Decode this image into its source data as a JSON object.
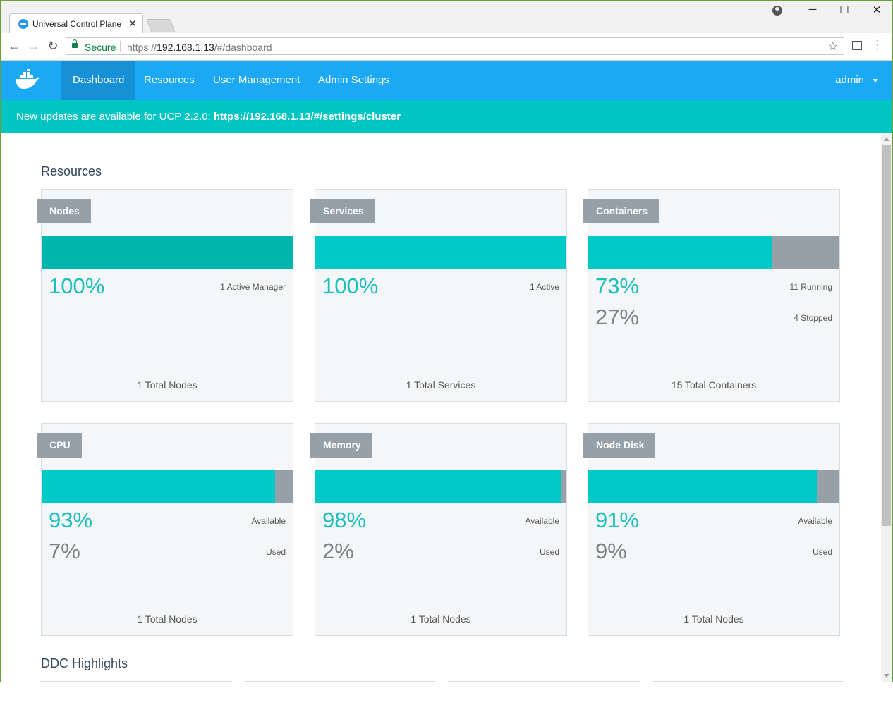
{
  "browser": {
    "tab_title": "Universal Control Plane",
    "tab_close": "✕",
    "secure_label": "Secure",
    "url_scheme": "https://",
    "url_host": "192.168.1.13",
    "url_path": "/#/dashboard",
    "window_controls": {
      "minimize": "─",
      "maximize": "☐",
      "close": "✕"
    }
  },
  "nav": {
    "logo": "docker-whale-icon",
    "items": [
      {
        "label": "Dashboard",
        "active": true
      },
      {
        "label": "Resources",
        "active": false
      },
      {
        "label": "User Management",
        "active": false
      },
      {
        "label": "Admin Settings",
        "active": false
      }
    ],
    "user": "admin"
  },
  "banner": {
    "text": "New updates are available for UCP 2.2.0: ",
    "link": "https://192.168.1.13/#/settings/cluster"
  },
  "sections": {
    "resources_title": "Resources",
    "highlights_title": "DDC Highlights"
  },
  "cards": [
    {
      "label": "Nodes",
      "fill": 100,
      "fill_style": "dark",
      "rows": [
        {
          "pct": "100%",
          "text": "1 Active Manager",
          "tone": "teal"
        }
      ],
      "total": "1 Total Nodes"
    },
    {
      "label": "Services",
      "fill": 100,
      "fill_style": "teal",
      "rows": [
        {
          "pct": "100%",
          "text": "1 Active",
          "tone": "teal"
        }
      ],
      "total": "1 Total Services"
    },
    {
      "label": "Containers",
      "fill": 73,
      "fill_style": "teal",
      "rows": [
        {
          "pct": "73%",
          "text": "11 Running",
          "tone": "teal"
        },
        {
          "pct": "27%",
          "text": "4 Stopped",
          "tone": "gray"
        }
      ],
      "total": "15 Total Containers"
    },
    {
      "label": "CPU",
      "fill": 93,
      "fill_style": "teal",
      "rows": [
        {
          "pct": "93%",
          "text": "Available",
          "tone": "teal"
        },
        {
          "pct": "7%",
          "text": "Used",
          "tone": "gray"
        }
      ],
      "total": "1 Total Nodes"
    },
    {
      "label": "Memory",
      "fill": 98,
      "fill_style": "teal",
      "rows": [
        {
          "pct": "98%",
          "text": "Available",
          "tone": "teal"
        },
        {
          "pct": "2%",
          "text": "Used",
          "tone": "gray"
        }
      ],
      "total": "1 Total Nodes"
    },
    {
      "label": "Node Disk",
      "fill": 91,
      "fill_style": "teal",
      "rows": [
        {
          "pct": "91%",
          "text": "Available",
          "tone": "teal"
        },
        {
          "pct": "9%",
          "text": "Used",
          "tone": "gray"
        }
      ],
      "total": "1 Total Nodes"
    }
  ],
  "colors": {
    "nav_bg": "#1ba9f5",
    "nav_active": "#1691d6",
    "banner_bg": "#00c5c3",
    "bar_fill": "#00c9c8",
    "bar_fill_dark": "#00b5ad",
    "bar_empty": "#95a0a9"
  }
}
